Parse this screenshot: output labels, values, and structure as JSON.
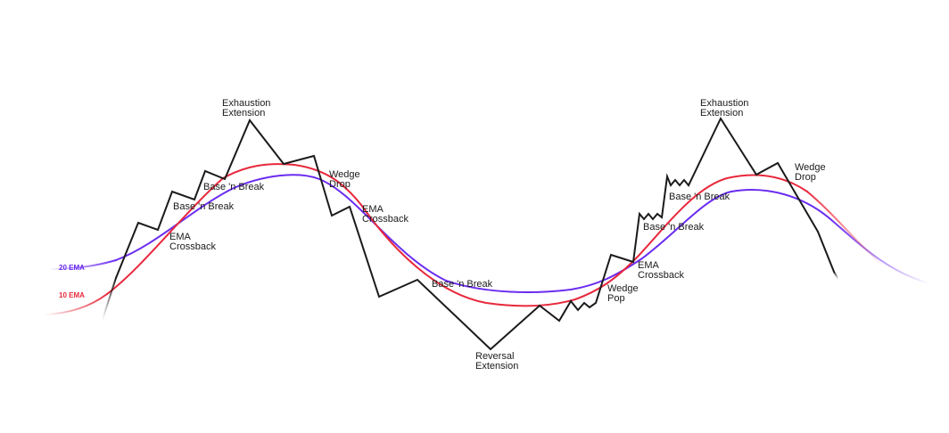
{
  "colors": {
    "price": "#1a1a1a",
    "ema20": "#6a2cf0",
    "ema10": "#e8283c"
  },
  "legend": {
    "ema20": "20 EMA",
    "ema10": "10 EMA"
  },
  "annotations": {
    "exhaustion_left": [
      "Exhaustion",
      "Extension"
    ],
    "exhaustion_right": [
      "Exhaustion",
      "Extension"
    ],
    "base_break_1": "Base 'n Break",
    "base_break_2": "Base 'n Break",
    "base_break_3": "Base 'n Break",
    "base_break_4": "Base 'n Break",
    "base_break_5": "Base 'n Break",
    "ema_crossback_left": [
      "EMA",
      "Crossback"
    ],
    "ema_crossback_mid": [
      "EMA",
      "Crossback"
    ],
    "ema_crossback_right": [
      "EMA",
      "Crossback"
    ],
    "wedge_drop_left": [
      "Wedge",
      "Drop"
    ],
    "wedge_drop_right": [
      "Wedge",
      "Drop"
    ],
    "wedge_pop": [
      "Wedge",
      "Pop"
    ],
    "reversal_extension": [
      "Reversal",
      "Extension"
    ]
  }
}
